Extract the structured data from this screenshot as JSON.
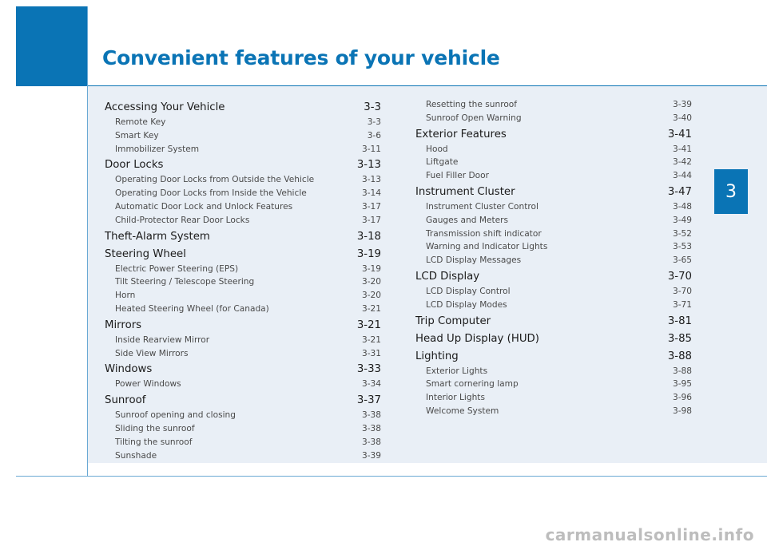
{
  "header": {
    "title": "Convenient features of your vehicle",
    "chapter": "3"
  },
  "toc_left": [
    {
      "title": "Accessing Your Vehicle",
      "page": "3-3",
      "items": [
        {
          "title": "Remote Key",
          "page": "3-3"
        },
        {
          "title": "Smart Key",
          "page": "3-6"
        },
        {
          "title": "Immobilizer System",
          "page": "3-11"
        }
      ]
    },
    {
      "title": "Door Locks",
      "page": "3-13",
      "items": [
        {
          "title": "Operating Door Locks from Outside the Vehicle",
          "page": "3-13"
        },
        {
          "title": "Operating Door Locks from Inside the Vehicle",
          "page": "3-14"
        },
        {
          "title": "Automatic Door Lock and Unlock Features",
          "page": "3-17"
        },
        {
          "title": "Child-Protector Rear Door Locks",
          "page": "3-17"
        }
      ]
    },
    {
      "title": "Theft-Alarm System",
      "page": "3-18",
      "items": []
    },
    {
      "title": "Steering Wheel",
      "page": "3-19",
      "items": [
        {
          "title": "Electric Power Steering (EPS)",
          "page": "3-19"
        },
        {
          "title": "Tilt Steering / Telescope Steering",
          "page": "3-20"
        },
        {
          "title": "Horn",
          "page": "3-20"
        },
        {
          "title": "Heated Steering Wheel (for Canada)",
          "page": "3-21"
        }
      ]
    },
    {
      "title": "Mirrors",
      "page": "3-21",
      "items": [
        {
          "title": "Inside Rearview Mirror",
          "page": "3-21"
        },
        {
          "title": "Side View Mirrors",
          "page": "3-31"
        }
      ]
    },
    {
      "title": "Windows",
      "page": "3-33",
      "items": [
        {
          "title": "Power Windows",
          "page": "3-34"
        }
      ]
    },
    {
      "title": "Sunroof",
      "page": "3-37",
      "items": [
        {
          "title": "Sunroof opening and closing",
          "page": "3-38"
        },
        {
          "title": "Sliding the sunroof",
          "page": "3-38"
        },
        {
          "title": "Tilting the sunroof",
          "page": "3-38"
        },
        {
          "title": "Sunshade",
          "page": "3-39"
        }
      ]
    }
  ],
  "toc_right_lead": [
    {
      "title": "Resetting the sunroof",
      "page": "3-39"
    },
    {
      "title": "Sunroof Open Warning",
      "page": "3-40"
    }
  ],
  "toc_right": [
    {
      "title": "Exterior Features",
      "page": "3-41",
      "items": [
        {
          "title": "Hood",
          "page": "3-41"
        },
        {
          "title": "Liftgate",
          "page": "3-42"
        },
        {
          "title": "Fuel Filler Door",
          "page": "3-44"
        }
      ]
    },
    {
      "title": "Instrument Cluster",
      "page": "3-47",
      "items": [
        {
          "title": "Instrument Cluster Control",
          "page": "3-48"
        },
        {
          "title": "Gauges and Meters",
          "page": "3-49"
        },
        {
          "title": "Transmission shift indicator",
          "page": "3-52"
        },
        {
          "title": "Warning and Indicator Lights",
          "page": "3-53"
        },
        {
          "title": "LCD Display Messages",
          "page": "3-65"
        }
      ]
    },
    {
      "title": "LCD Display",
      "page": "3-70",
      "items": [
        {
          "title": "LCD Display Control",
          "page": "3-70"
        },
        {
          "title": "LCD Display Modes",
          "page": "3-71"
        }
      ]
    },
    {
      "title": "Trip Computer",
      "page": "3-81",
      "items": []
    },
    {
      "title": "Head Up Display (HUD)",
      "page": "3-85",
      "items": []
    },
    {
      "title": "Lighting",
      "page": "3-88",
      "items": [
        {
          "title": "Exterior Lights",
          "page": "3-88"
        },
        {
          "title": "Smart cornering lamp",
          "page": "3-95"
        },
        {
          "title": "Interior Lights",
          "page": "3-96"
        },
        {
          "title": "Welcome System",
          "page": "3-98"
        }
      ]
    }
  ],
  "watermark": "carmanualsonline.info"
}
